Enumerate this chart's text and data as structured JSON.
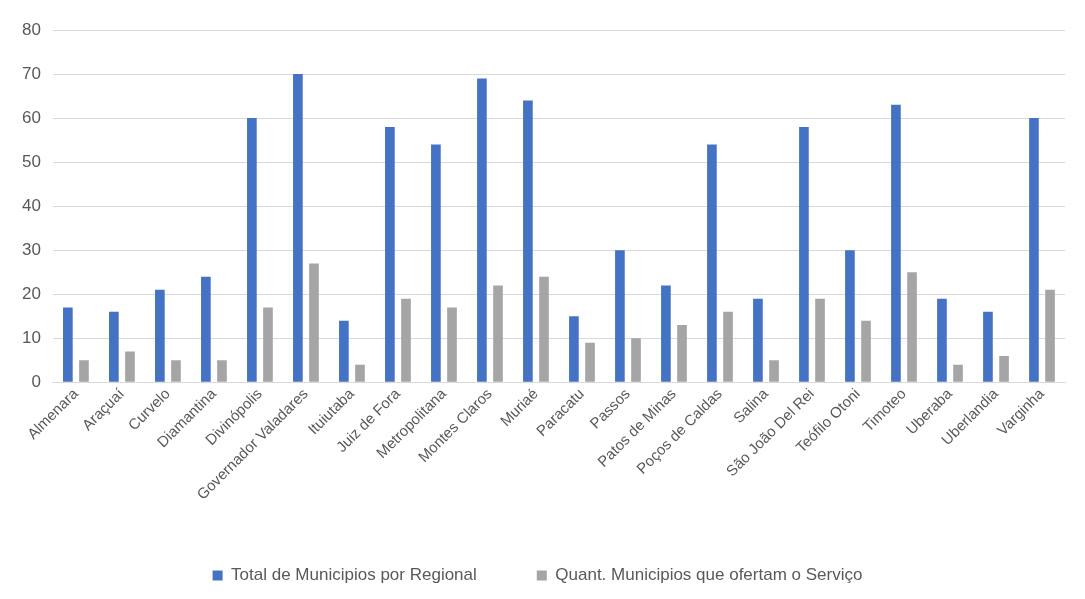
{
  "chart_data": {
    "type": "bar",
    "categories": [
      "Almenara",
      "Araçuaí",
      "Curvelo",
      "Diamantina",
      "Divinópolis",
      "Governador Valadares",
      "Ituiutaba",
      "Juiz de Fora",
      "Metropolitana",
      "Montes Claros",
      "Muriaé",
      "Paracatu",
      "Passos",
      "Patos de Minas",
      "Poços de Caldas",
      "Salina",
      "São João Del Rei",
      "Teófilo Otoni",
      "Timoteo",
      "Uberaba",
      "Uberlandia",
      "Varginha"
    ],
    "series": [
      {
        "name": "Total de Municipios por Regional",
        "color": "#4472c4",
        "values": [
          17,
          16,
          21,
          24,
          60,
          70,
          14,
          58,
          54,
          69,
          64,
          15,
          30,
          22,
          54,
          19,
          58,
          30,
          63,
          19,
          16,
          60
        ]
      },
      {
        "name": "Quant. Municipios que ofertam o Serviço",
        "color": "#a5a5a5",
        "values": [
          5,
          7,
          5,
          5,
          17,
          27,
          4,
          19,
          17,
          22,
          24,
          9,
          10,
          13,
          16,
          5,
          19,
          14,
          25,
          4,
          6,
          21
        ]
      }
    ],
    "ylim": [
      0,
      80
    ],
    "yticks": [
      0,
      10,
      20,
      30,
      40,
      50,
      60,
      70,
      80
    ],
    "grid": "y",
    "legend": "bottom"
  }
}
